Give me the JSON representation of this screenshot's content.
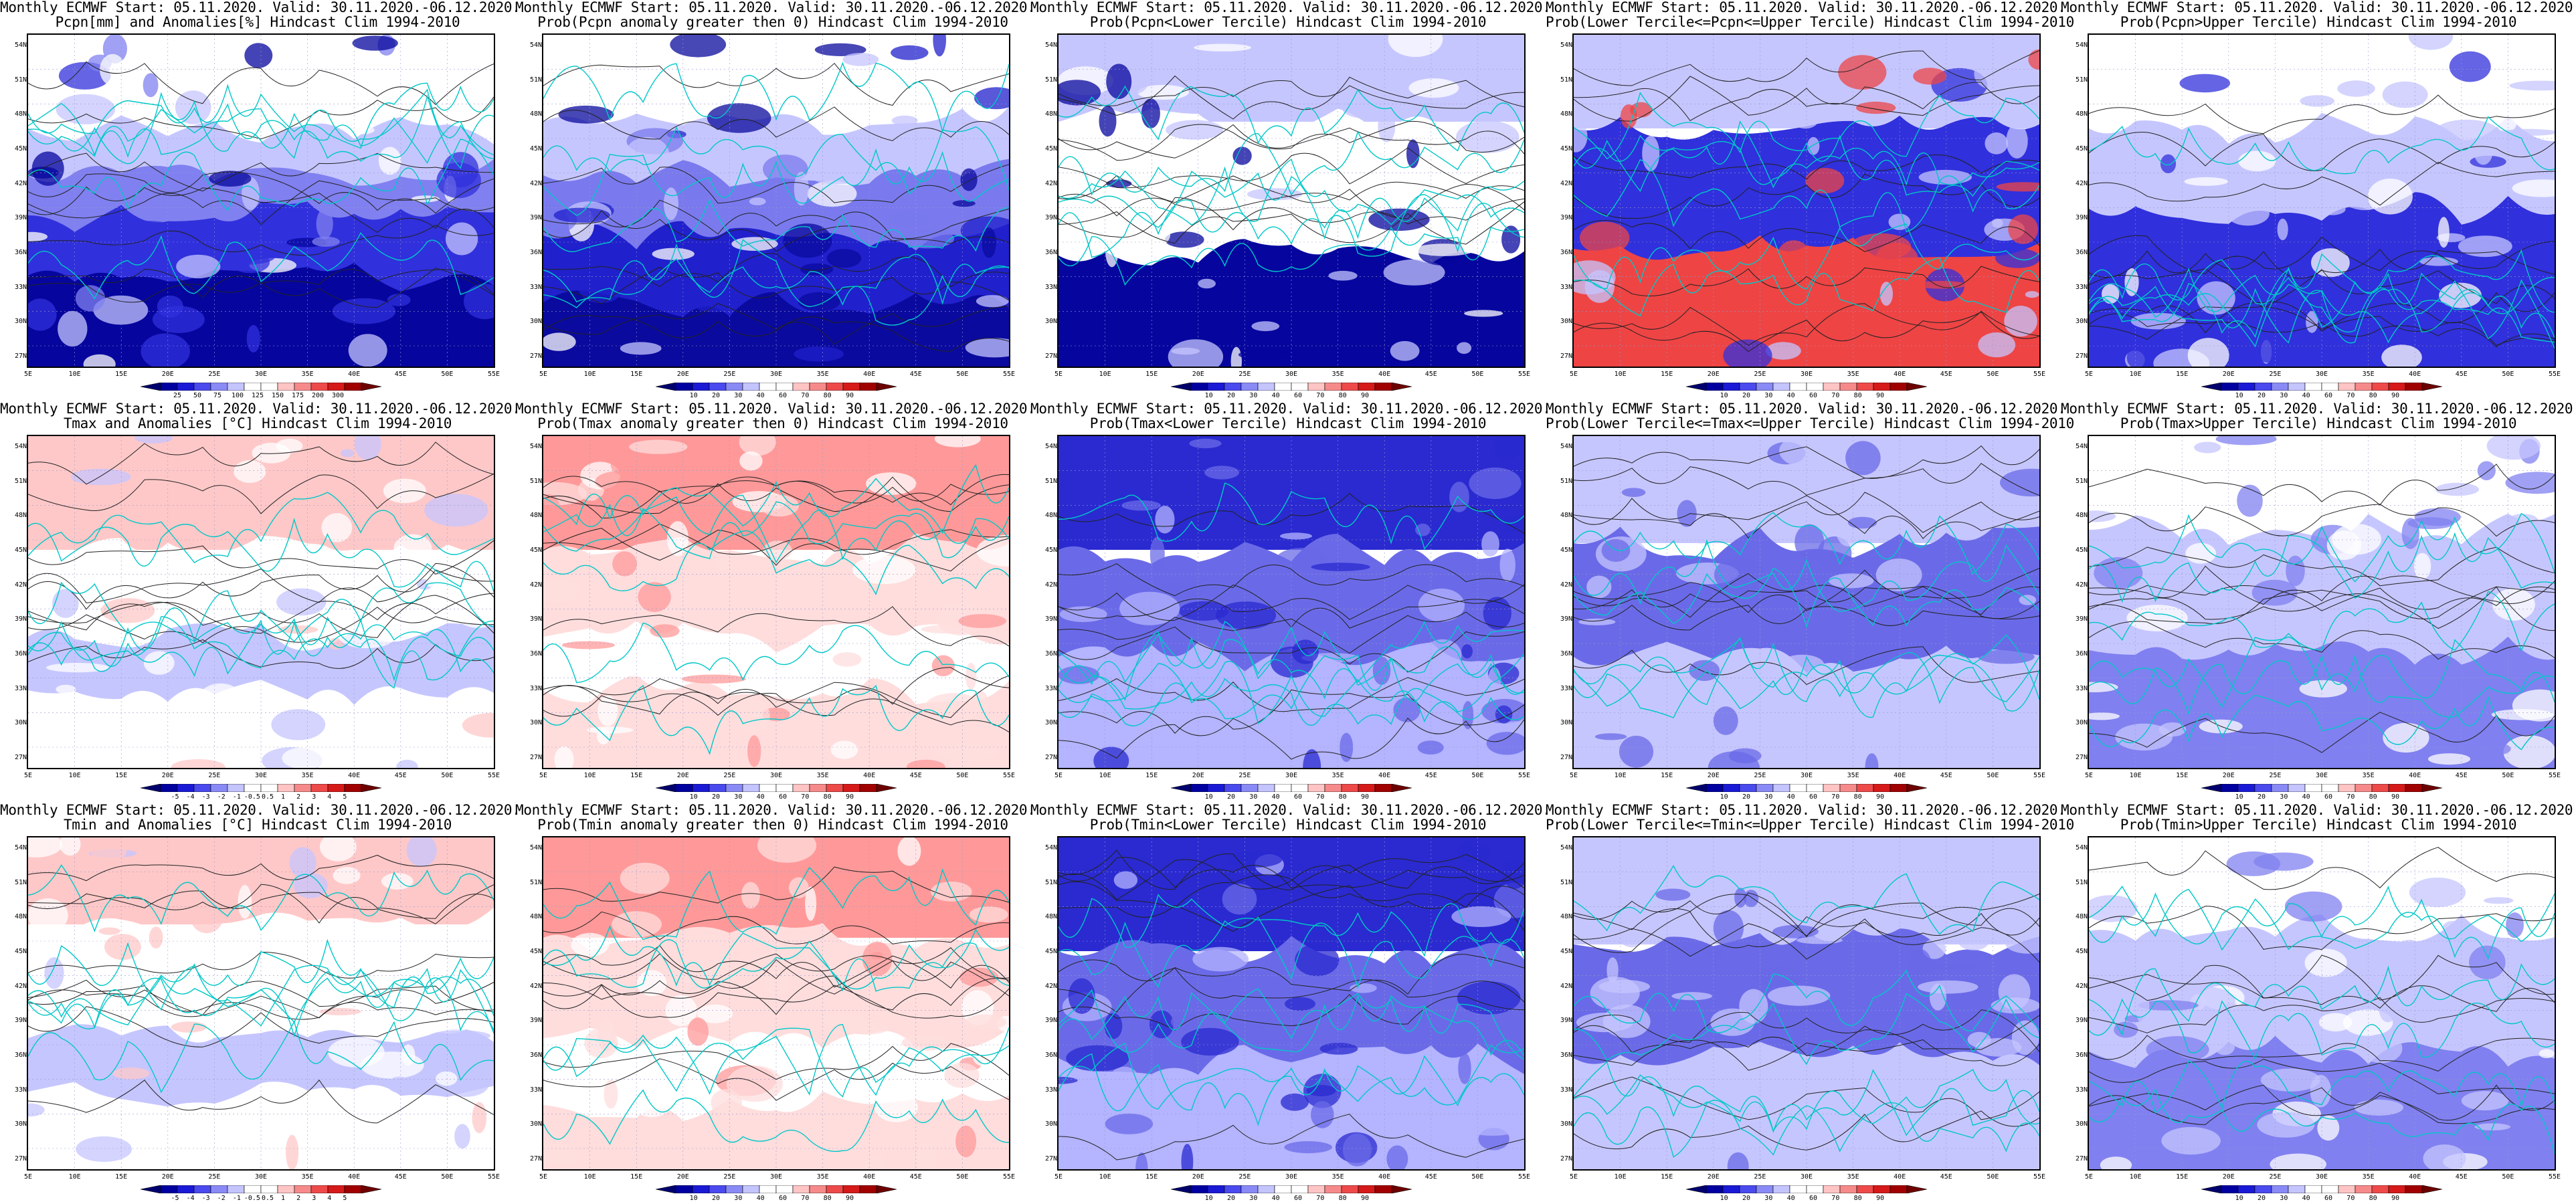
{
  "axes": {
    "lat_labels": [
      "54N",
      "51N",
      "48N",
      "45N",
      "42N",
      "39N",
      "36N",
      "33N",
      "30N",
      "27N"
    ],
    "lon_labels": [
      "5E",
      "10E",
      "15E",
      "20E",
      "25E",
      "30E",
      "35E",
      "40E",
      "45E",
      "50E",
      "55E"
    ]
  },
  "colorbars": {
    "pcpn": [
      "25",
      "50",
      "75",
      "100",
      "125",
      "150",
      "175",
      "200",
      "300"
    ],
    "prob": [
      "10",
      "20",
      "30",
      "40",
      "60",
      "70",
      "80",
      "90"
    ],
    "anom": [
      "-5",
      "-4",
      "-3",
      "-2",
      "-1",
      "-0.5",
      "0.5",
      "1",
      "2",
      "3",
      "4",
      "5"
    ]
  },
  "colors": {
    "map_line": "#00c8c8",
    "contour": "#222222",
    "blue_dark": "#06069e",
    "red_dark": "#c80000"
  },
  "rows": [
    {
      "panels": [
        {
          "title1": "Monthly ECMWF Start: 05.11.2020. Valid: 30.11.2020.-06.12.2020.",
          "title2": "Pcpn[mm] and Anomalies[%] Hindcast Clim 1994-2010",
          "colorbar": "pcpn",
          "scheme": "pcpn"
        },
        {
          "title1": "Monthly ECMWF Start: 05.11.2020. Valid: 30.11.2020.-06.12.2020.",
          "title2": "Prob(Pcpn anomaly greater then 0) Hindcast Clim 1994-2010",
          "colorbar": "prob",
          "scheme": "pcpnprob"
        },
        {
          "title1": "Monthly ECMWF Start: 05.11.2020. Valid: 30.11.2020.-06.12.2020.",
          "title2": "Prob(Pcpn<Lower Tercile) Hindcast Clim 1994-2010",
          "colorbar": "prob",
          "scheme": "pcpnlow"
        },
        {
          "title1": "Monthly ECMWF Start: 05.11.2020. Valid: 30.11.2020.-06.12.2020.",
          "title2": "Prob(Lower Tercile<=Pcpn<=Upper Tercile) Hindcast Clim 1994-2010",
          "colorbar": "prob",
          "scheme": "pcpnmid"
        },
        {
          "title1": "Monthly ECMWF Start: 05.11.2020. Valid: 30.11.2020.-06.12.2020.",
          "title2": "Prob(Pcpn>Upper Tercile) Hindcast Clim 1994-2010",
          "colorbar": "prob",
          "scheme": "pcpnup"
        }
      ]
    },
    {
      "panels": [
        {
          "title1": "Monthly ECMWF Start: 05.11.2020. Valid: 30.11.2020.-06.12.2020.",
          "title2": "Tmax and Anomalies [°C] Hindcast Clim 1994-2010",
          "colorbar": "anom",
          "scheme": "tanom"
        },
        {
          "title1": "Monthly ECMWF Start: 05.11.2020. Valid: 30.11.2020.-06.12.2020.",
          "title2": "Prob(Tmax anomaly greater then 0) Hindcast Clim 1994-2010",
          "colorbar": "prob",
          "scheme": "tprob"
        },
        {
          "title1": "Monthly ECMWF Start: 05.11.2020. Valid: 30.11.2020.-06.12.2020.",
          "title2": "Prob(Tmax<Lower Tercile) Hindcast Clim 1994-2010",
          "colorbar": "prob",
          "scheme": "tlow"
        },
        {
          "title1": "Monthly ECMWF Start: 05.11.2020. Valid: 30.11.2020.-06.12.2020.",
          "title2": "Prob(Lower Tercile<=Tmax<=Upper Tercile) Hindcast Clim 1994-2010",
          "colorbar": "prob",
          "scheme": "tmid"
        },
        {
          "title1": "Monthly ECMWF Start: 05.11.2020. Valid: 30.11.2020.-06.12.2020.",
          "title2": "Prob(Tmax>Upper Tercile) Hindcast Clim 1994-2010",
          "colorbar": "prob",
          "scheme": "tup"
        }
      ]
    },
    {
      "panels": [
        {
          "title1": "Monthly ECMWF Start: 05.11.2020. Valid: 30.11.2020.-06.12.2020.",
          "title2": "Tmin and Anomalies [°C] Hindcast Clim 1994-2010",
          "colorbar": "anom",
          "scheme": "tanom2"
        },
        {
          "title1": "Monthly ECMWF Start: 05.11.2020. Valid: 30.11.2020.-06.12.2020.",
          "title2": "Prob(Tmin anomaly greater then 0) Hindcast Clim 1994-2010",
          "colorbar": "prob",
          "scheme": "tprob2"
        },
        {
          "title1": "Monthly ECMWF Start: 05.11.2020. Valid: 30.11.2020.-06.12.2020.",
          "title2": "Prob(Tmin<Lower Tercile) Hindcast Clim 1994-2010",
          "colorbar": "prob",
          "scheme": "tlow"
        },
        {
          "title1": "Monthly ECMWF Start: 05.11.2020. Valid: 30.11.2020.-06.12.2020.",
          "title2": "Prob(Lower Tercile<=Tmin<=Upper Tercile) Hindcast Clim 1994-2010",
          "colorbar": "prob",
          "scheme": "tmid"
        },
        {
          "title1": "Monthly ECMWF Start: 05.11.2020. Valid: 30.11.2020.-06.12.2020.",
          "title2": "Prob(Tmin>Upper Tercile) Hindcast Clim 1994-2010",
          "colorbar": "prob",
          "scheme": "tup"
        }
      ]
    }
  ]
}
